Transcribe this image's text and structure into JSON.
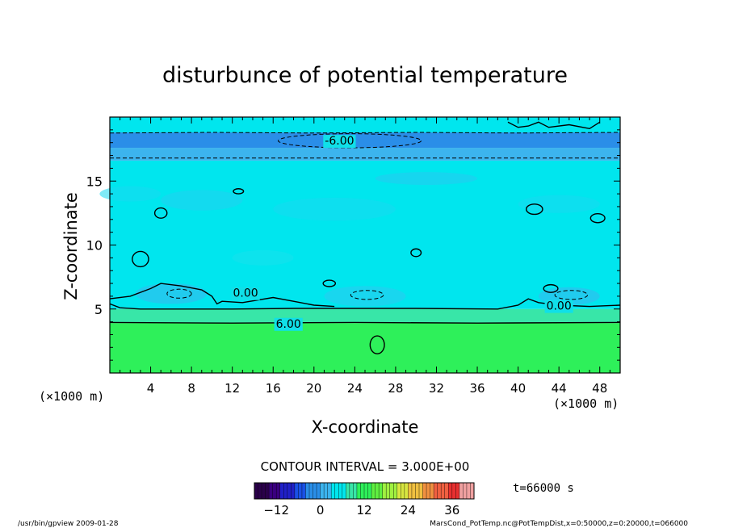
{
  "chart_data": {
    "type": "heatmap",
    "title": "disturbunce of potential temperature",
    "xlabel": "X-coordinate",
    "ylabel": "Z-coordinate",
    "x_unit": "(×1000 m)",
    "x_unit_right": "(×1000 m)",
    "xlim": [
      0,
      50
    ],
    "ylim": [
      0,
      20
    ],
    "x_ticks": [
      4,
      8,
      12,
      16,
      20,
      24,
      28,
      32,
      36,
      40,
      44,
      48
    ],
    "y_ticks": [
      5,
      10,
      15
    ],
    "contour_interval_text": "CONTOUR INTERVAL = 3.000E+00",
    "time_text": "t=66000 s",
    "contour_labels": [
      {
        "text": "-6.00",
        "x": 22.5,
        "y": 18.1
      },
      {
        "text": "0.00",
        "x": 13.3,
        "y": 6.2
      },
      {
        "text": "0.00",
        "x": 44.0,
        "y": 5.2
      },
      {
        "text": "6.00",
        "x": 17.5,
        "y": 3.8
      }
    ],
    "bands": [
      {
        "z_min": 0.0,
        "z_max": 3.9,
        "value": 9,
        "color": "#2ef05a"
      },
      {
        "z_min": 3.9,
        "z_max": 5.0,
        "value": 4.5,
        "color": "#38e6a8"
      },
      {
        "z_min": 5.0,
        "z_max": 16.6,
        "value": 1.5,
        "color": "#00e6ee"
      },
      {
        "z_min": 16.6,
        "z_max": 17.6,
        "value": -3,
        "color": "#3cb4ee"
      },
      {
        "z_min": 17.6,
        "z_max": 18.8,
        "value": -6,
        "color": "#2a8ee8"
      },
      {
        "z_min": 18.8,
        "z_max": 20.0,
        "value": 1.5,
        "color": "#00e6ee"
      }
    ],
    "colorbar": {
      "min": -18,
      "max": 42,
      "tick_values": [
        -12,
        0,
        12,
        24,
        36
      ],
      "tick_labels": [
        "−12",
        "0",
        "12",
        "24",
        "36"
      ],
      "colors": [
        "#2a004a",
        "#3a0080",
        "#2020c8",
        "#1a50e6",
        "#2a8ee8",
        "#3cb4ee",
        "#00e6ee",
        "#38e6a8",
        "#2ef05a",
        "#60f040",
        "#a0f040",
        "#d8e640",
        "#f0c040",
        "#f09040",
        "#f06040",
        "#e83030",
        "#f0a0a0"
      ]
    }
  },
  "footer": {
    "left": "/usr/bin/gpview  2009-01-28",
    "right": "MarsCond_PotTemp.nc@PotTempDist,x=0:50000,z=0:20000,t=066000"
  }
}
